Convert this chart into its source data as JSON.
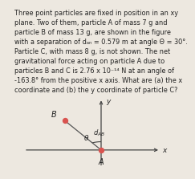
{
  "text_lines": [
    "Three point particles are fixed in position in an xy",
    "plane. Two of them, particle A of mass 7 g and",
    "particle B of mass 13 g, are shown in the figure",
    "with a separation of dₐₙ = 0.579 m at angle Θ = 30°.",
    "Particle C, with mass 8 g, is not shown. The net",
    "gravitational force acting on particle A due to",
    "particles B and C is 2.76 x 10⁻¹⁴ N at an angle of",
    "-163.8° from the positive x axis. What are (a) the x",
    "coordinate and (b) the y coordinate of particle C?"
  ],
  "text_fontsize": 5.9,
  "background_color": "#ede8e0",
  "particle_color": "#d9534f",
  "particle_size": 28,
  "axis_color": "#444444",
  "line_color": "#555555",
  "label_A": "A",
  "label_B": "B",
  "label_dAB": "d",
  "label_dAB_sub": "AB",
  "label_theta": "θ",
  "label_x": "x",
  "label_y": "y"
}
